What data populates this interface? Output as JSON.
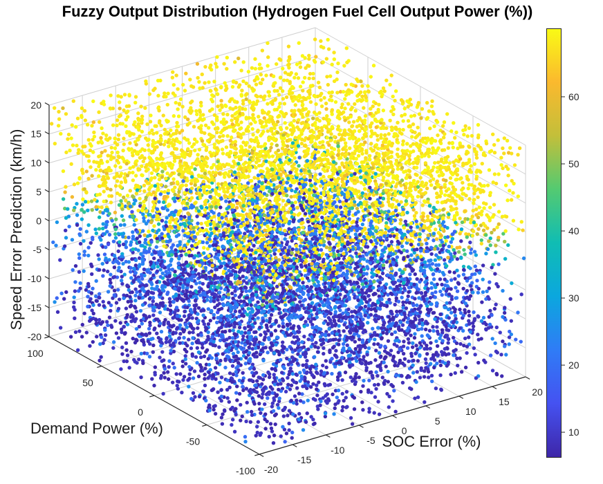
{
  "title": "Fuzzy Output Distribution (Hydrogen Fuel Cell Output Power (%))",
  "chart_data": {
    "type": "scatter",
    "projection": "3d",
    "view": {
      "azimuth": -37.5,
      "elevation": 30
    },
    "title": "Fuzzy Output Distribution (Hydrogen Fuel Cell Output Power (%))",
    "axes": {
      "x": {
        "label": "SOC Error (%)",
        "min": -20,
        "max": 20,
        "ticks": [
          -20,
          -15,
          -10,
          -5,
          0,
          5,
          10,
          15,
          20
        ]
      },
      "y": {
        "label": "Demand Power (%)",
        "min": -100,
        "max": 100,
        "ticks": [
          100,
          50,
          0,
          -50,
          -100
        ]
      },
      "z": {
        "label": "Speed Error Prediction (km/h)",
        "min": -20,
        "max": 20,
        "ticks": [
          20,
          15,
          10,
          5,
          0,
          -5,
          -10,
          -15,
          -20
        ]
      }
    },
    "colorbar": {
      "min": 6.3,
      "max": 70.2,
      "ticks": [
        10,
        20,
        30,
        40,
        50,
        60
      ]
    },
    "colormap": {
      "name": "parula",
      "stops": [
        [
          0.0,
          "#3e26a8"
        ],
        [
          0.125,
          "#4552f1"
        ],
        [
          0.25,
          "#2f7cf6"
        ],
        [
          0.375,
          "#0ba7de"
        ],
        [
          0.5,
          "#10bdb3"
        ],
        [
          0.625,
          "#54ca71"
        ],
        [
          0.75,
          "#c3bf3a"
        ],
        [
          0.875,
          "#fbb92e"
        ],
        [
          1.0,
          "#f9fb15"
        ]
      ]
    },
    "points": {
      "count": 9500,
      "seed": 1337,
      "marker_diameter_px": 5.4,
      "x_distribution": "uniform(-20,20)",
      "y_distribution": "uniform(-100,100)",
      "z_distribution": "uniform(-20,20)",
      "value_model": {
        "description": "fuzzy output power (%): saturates high for positive speed error, low two-level for negative speed error",
        "z_high_threshold": 5.5,
        "high_range": [
          66.5,
          70.2
        ],
        "high_orange_fraction": 0.05,
        "high_orange_range": [
          57,
          65
        ],
        "transition_base": 21,
        "transition_gain": 47,
        "transition_x_gain": 4,
        "low_blue_range": [
          17.5,
          26
        ],
        "low_teal_fraction": 0.12,
        "low_teal_range": [
          26,
          32
        ],
        "low_dark_range": [
          6.3,
          9.7
        ],
        "dark_prob_base": 0.18,
        "dark_prob_slope": 0.65,
        "dark_prob_depth": 16
      }
    },
    "grid": {
      "show": true,
      "color": "#cfcfcf"
    }
  },
  "style": {
    "background": "#ffffff",
    "axis_color": "#262626",
    "tick_text_color": "#262626",
    "tick_font_px": 14
  }
}
